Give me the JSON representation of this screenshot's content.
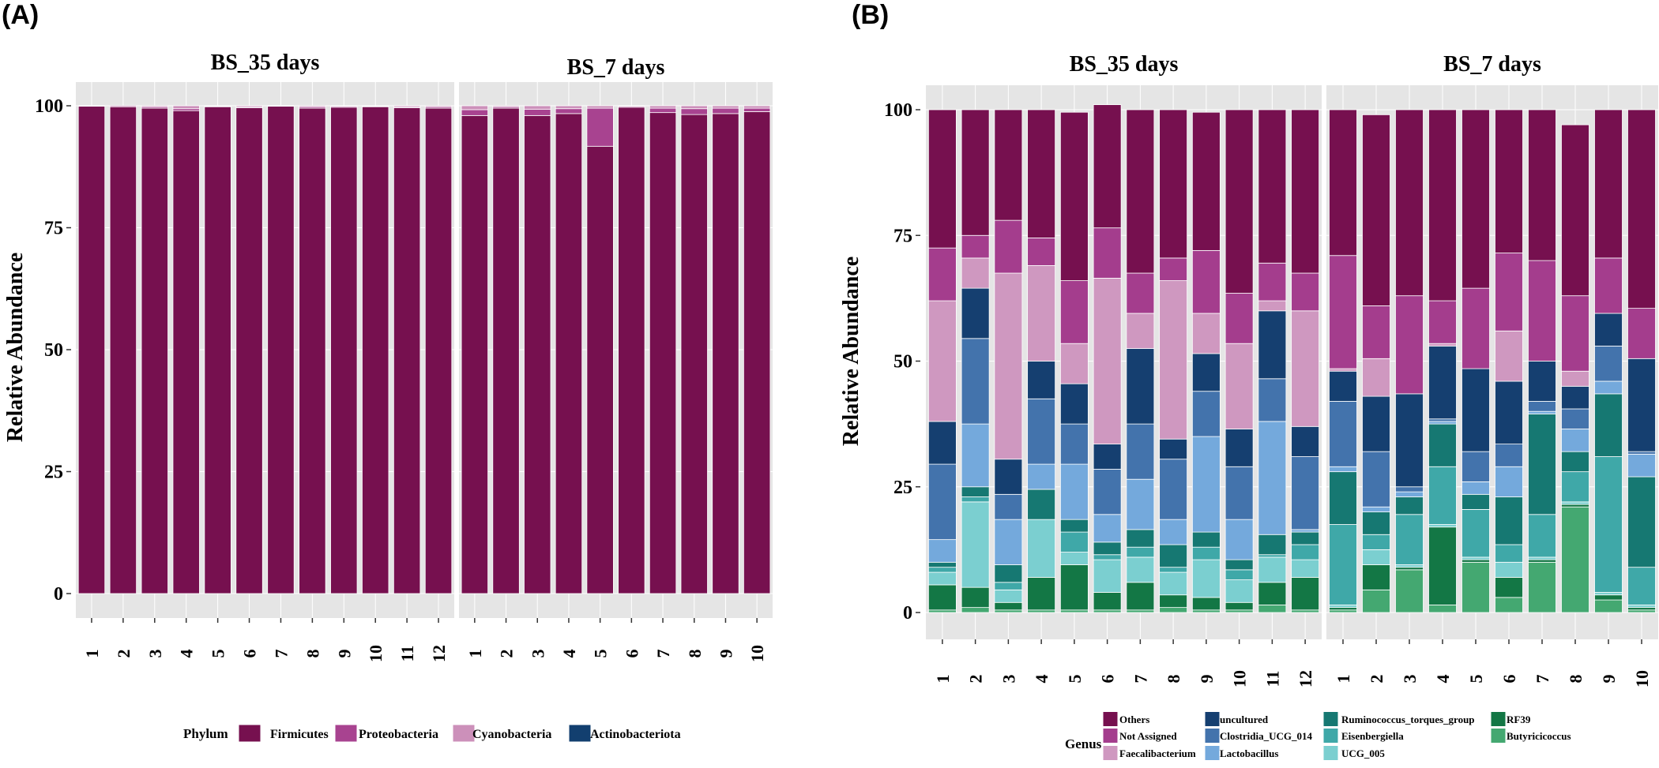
{
  "panel_labels": [
    "(A)",
    "(B)"
  ],
  "chart_data": [
    {
      "type": "bar",
      "stacked": true,
      "panel": "(A)",
      "ylabel": "Relative Abundance",
      "xlabel": "",
      "ylim": [
        0,
        100
      ],
      "yticks": [
        0,
        25,
        50,
        75,
        100
      ],
      "legend_title": "Phylum",
      "legend_position": "bottom",
      "series_names": [
        "Firmicutes",
        "Proteobacteria",
        "Cyanobacteria",
        "Actinobacteriota"
      ],
      "colors": {
        "Firmicutes": "#76104f",
        "Proteobacteria": "#a84390",
        "Cyanobacteria": "#cc90ba",
        "Actinobacteriota": "#123f6f"
      },
      "facets": [
        {
          "title": "BS_35 days",
          "categories": [
            "1",
            "2",
            "3",
            "4",
            "5",
            "6",
            "7",
            "8",
            "9",
            "10",
            "11",
            "12"
          ],
          "series": [
            {
              "name": "Firmicutes",
              "values": [
                99.9,
                99.8,
                99.5,
                99.0,
                99.8,
                99.6,
                99.9,
                99.5,
                99.7,
                99.8,
                99.6,
                99.5
              ]
            },
            {
              "name": "Proteobacteria",
              "values": [
                0.1,
                0.2,
                0.3,
                0.4,
                0.1,
                0.2,
                0.1,
                0.3,
                0.2,
                0.1,
                0.2,
                0.3
              ]
            },
            {
              "name": "Cyanobacteria",
              "values": [
                0.0,
                0.0,
                0.2,
                0.6,
                0.1,
                0.2,
                0.0,
                0.2,
                0.1,
                0.1,
                0.2,
                0.2
              ]
            },
            {
              "name": "Actinobacteriota",
              "values": [
                0,
                0,
                0,
                0,
                0,
                0,
                0,
                0,
                0,
                0,
                0,
                0
              ]
            }
          ]
        },
        {
          "title": "BS_7 days",
          "categories": [
            "1",
            "2",
            "3",
            "4",
            "5",
            "6",
            "7",
            "8",
            "9",
            "10"
          ],
          "series": [
            {
              "name": "Firmicutes",
              "values": [
                98.0,
                99.5,
                98.0,
                98.4,
                91.7,
                99.7,
                98.6,
                98.2,
                98.4,
                98.8
              ]
            },
            {
              "name": "Proteobacteria",
              "values": [
                1.2,
                0.3,
                1.3,
                1.0,
                7.8,
                0.2,
                0.9,
                1.2,
                1.1,
                0.7
              ]
            },
            {
              "name": "Cyanobacteria",
              "values": [
                0.8,
                0.2,
                0.7,
                0.6,
                0.5,
                0.1,
                0.5,
                0.6,
                0.5,
                0.5
              ]
            },
            {
              "name": "Actinobacteriota",
              "values": [
                0,
                0,
                0,
                0,
                0,
                0,
                0,
                0,
                0,
                0
              ]
            }
          ]
        }
      ]
    },
    {
      "type": "bar",
      "stacked": true,
      "panel": "(B)",
      "ylabel": "Relative Abundance",
      "xlabel": "",
      "ylim": [
        0,
        100
      ],
      "yticks": [
        0,
        25,
        50,
        75,
        100
      ],
      "legend_title": "Genus",
      "legend_position": "bottom",
      "series_names": [
        "Others",
        "Not Assigned",
        "Faecalibacterium",
        "uncultured",
        "Clostridia_UCG_014",
        "Lactobacillus",
        "Ruminococcus_torques_group",
        "Eisenbergiella",
        "UCG_005",
        "RF39",
        "Butyricicoccus"
      ],
      "colors": {
        "Others": "#76104f",
        "Not Assigned": "#a43d8d",
        "Faecalibacterium": "#cf98c0",
        "uncultured": "#153f70",
        "Clostridia_UCG_014": "#4373ac",
        "Lactobacillus": "#74a9dc",
        "Ruminococcus_torques_group": "#167872",
        "Eisenbergiella": "#3fa8a8",
        "UCG_005": "#7bcfd0",
        "RF39": "#137745",
        "Butyricicoccus": "#44a871"
      },
      "facets": [
        {
          "title": "BS_35 days",
          "categories": [
            "1",
            "2",
            "3",
            "4",
            "5",
            "6",
            "7",
            "8",
            "9",
            "10",
            "11",
            "12"
          ],
          "series": [
            {
              "name": "Butyricicoccus",
              "values": [
                0.5,
                1.0,
                0.5,
                0.5,
                0.5,
                0.5,
                0.5,
                1.0,
                0.5,
                0.5,
                1.5,
                0.5
              ]
            },
            {
              "name": "RF39",
              "values": [
                5.0,
                4.0,
                1.5,
                6.5,
                9.0,
                3.5,
                5.5,
                2.5,
                2.5,
                1.5,
                4.5,
                6.5
              ]
            },
            {
              "name": "UCG_005",
              "values": [
                2.5,
                17.0,
                2.5,
                11.5,
                2.5,
                6.5,
                5.0,
                4.5,
                7.5,
                4.5,
                5.0,
                3.5
              ]
            },
            {
              "name": "Eisenbergiella",
              "values": [
                1.0,
                1.0,
                1.5,
                0.0,
                4.0,
                1.0,
                2.0,
                1.0,
                2.5,
                2.0,
                0.5,
                3.0
              ]
            },
            {
              "name": "Ruminococcus_torques_group",
              "values": [
                1.0,
                2.0,
                3.5,
                6.0,
                2.5,
                2.5,
                3.5,
                4.5,
                3.0,
                2.0,
                4.0,
                2.5
              ]
            },
            {
              "name": "Lactobacillus",
              "values": [
                4.5,
                12.5,
                9.0,
                5.0,
                11.0,
                5.5,
                10.0,
                5.0,
                19.0,
                8.0,
                22.5,
                0.5
              ]
            },
            {
              "name": "Clostridia_UCG_014",
              "values": [
                15.0,
                17.0,
                5.0,
                13.0,
                8.0,
                9.0,
                11.0,
                12.0,
                9.0,
                10.5,
                8.5,
                14.5
              ]
            },
            {
              "name": "uncultured",
              "values": [
                8.5,
                10.0,
                7.0,
                7.5,
                8.0,
                5.0,
                15.0,
                4.0,
                7.5,
                7.5,
                13.5,
                6.0
              ]
            },
            {
              "name": "Faecalibacterium",
              "values": [
                24.0,
                6.0,
                37.0,
                19.0,
                8.0,
                33.0,
                7.0,
                31.5,
                8.0,
                17.0,
                2.0,
                23.0
              ]
            },
            {
              "name": "Not Assigned",
              "values": [
                10.5,
                4.5,
                10.5,
                5.5,
                12.5,
                10.0,
                8.0,
                4.5,
                12.5,
                10.0,
                7.5,
                7.5
              ]
            },
            {
              "name": "Others",
              "values": [
                27.5,
                25.0,
                22.0,
                25.5,
                33.5,
                24.5,
                32.5,
                29.5,
                27.5,
                36.5,
                30.5,
                32.5
              ]
            }
          ]
        },
        {
          "title": "BS_7 days",
          "categories": [
            "1",
            "2",
            "3",
            "4",
            "5",
            "6",
            "7",
            "8",
            "9",
            "10"
          ],
          "series": [
            {
              "name": "Butyricicoccus",
              "values": [
                0.5,
                4.5,
                8.5,
                1.5,
                10.0,
                3.0,
                10.0,
                21.0,
                2.5,
                0.5
              ]
            },
            {
              "name": "RF39",
              "values": [
                0.5,
                5.0,
                0.5,
                15.5,
                0.5,
                4.0,
                0.5,
                0.5,
                1.0,
                0.5
              ]
            },
            {
              "name": "UCG_005",
              "values": [
                0.5,
                3.0,
                0.5,
                0.5,
                0.5,
                3.0,
                0.5,
                0.5,
                0.5,
                0.5
              ]
            },
            {
              "name": "Eisenbergiella",
              "values": [
                16.0,
                3.0,
                10.0,
                11.5,
                9.5,
                3.5,
                8.5,
                6.0,
                27.0,
                7.5
              ]
            },
            {
              "name": "Ruminococcus_torques_group",
              "values": [
                10.5,
                4.5,
                3.5,
                8.5,
                3.0,
                9.5,
                20.0,
                4.0,
                12.5,
                18.0
              ]
            },
            {
              "name": "Lactobacillus",
              "values": [
                1.0,
                1.0,
                1.0,
                0.5,
                2.5,
                6.0,
                0.5,
                4.5,
                2.5,
                4.5
              ]
            },
            {
              "name": "Clostridia_UCG_014",
              "values": [
                13.0,
                11.0,
                1.0,
                0.5,
                6.0,
                4.5,
                2.0,
                4.0,
                7.0,
                0.5
              ]
            },
            {
              "name": "uncultured",
              "values": [
                6.0,
                11.0,
                18.5,
                14.5,
                16.5,
                12.5,
                8.0,
                4.5,
                6.5,
                18.5
              ]
            },
            {
              "name": "Faecalibacterium",
              "values": [
                0.5,
                7.5,
                0.0,
                0.5,
                0.0,
                10.0,
                0.0,
                3.0,
                0.0,
                0.0
              ]
            },
            {
              "name": "Not Assigned",
              "values": [
                22.5,
                10.5,
                19.5,
                8.5,
                16.0,
                15.5,
                20.0,
                15.0,
                11.0,
                10.0
              ]
            },
            {
              "name": "Others",
              "values": [
                29.0,
                38.0,
                37.0,
                38.0,
                35.5,
                28.5,
                30.0,
                34.0,
                29.5,
                39.5
              ]
            }
          ]
        }
      ]
    }
  ]
}
